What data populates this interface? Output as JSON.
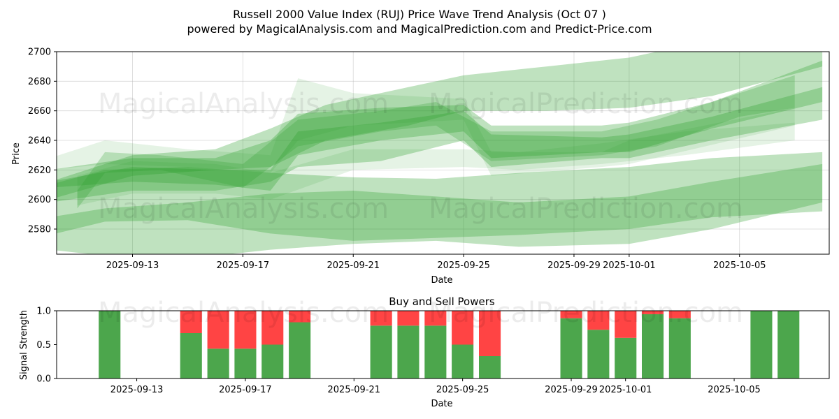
{
  "chart_data": [
    {
      "type": "area",
      "title_line1": "Russell 2000 Value Index (RUJ) Price Wave Trend Analysis (Oct 07 )",
      "title_line2": "powered by MagicalAnalysis.com and MagicalPrediction.com and Predict-Price.com",
      "xlabel": "Date",
      "ylabel": "Price",
      "xlim": [
        "2025-09-10",
        "2025-10-08"
      ],
      "ylim": [
        2563,
        2700
      ],
      "y_ticks": [
        2580,
        2600,
        2620,
        2640,
        2660,
        2680,
        2700
      ],
      "x_ticks": [
        "2025-09-13",
        "2025-09-17",
        "2025-09-21",
        "2025-09-25",
        "2025-09-29",
        "2025-10-01",
        "2025-10-05"
      ],
      "band_color": "#2ca02c",
      "watermarks": [
        "MagicalAnalysis.com",
        "MagicalPrediction.com"
      ],
      "bands": [
        {
          "dates": [
            "2025-09-10",
            "2025-09-12",
            "2025-09-15",
            "2025-09-18",
            "2025-09-21",
            "2025-09-24",
            "2025-09-27",
            "2025-10-01",
            "2025-10-04",
            "2025-10-08"
          ],
          "lower": [
            2576,
            2585,
            2586,
            2577,
            2572,
            2574,
            2576,
            2580,
            2588,
            2592
          ],
          "upper": [
            2588,
            2594,
            2598,
            2604,
            2606,
            2602,
            2598,
            2602,
            2612,
            2624
          ],
          "alpha": 0.3
        },
        {
          "dates": [
            "2025-09-10",
            "2025-09-12",
            "2025-09-15",
            "2025-09-18",
            "2025-09-21",
            "2025-09-24",
            "2025-09-27",
            "2025-10-01",
            "2025-10-04",
            "2025-10-08"
          ],
          "lower": [
            2566,
            2562,
            2560,
            2566,
            2570,
            2572,
            2568,
            2570,
            2580,
            2598
          ],
          "upper": [
            2610,
            2620,
            2622,
            2618,
            2615,
            2614,
            2618,
            2622,
            2628,
            2632
          ],
          "alpha": 0.3
        },
        {
          "dates": [
            "2025-09-10",
            "2025-09-13",
            "2025-09-16",
            "2025-09-18",
            "2025-09-19",
            "2025-09-22",
            "2025-09-25",
            "2025-09-26",
            "2025-09-30",
            "2025-10-01",
            "2025-10-04",
            "2025-10-08"
          ],
          "lower": [
            2608,
            2612,
            2610,
            2606,
            2630,
            2640,
            2646,
            2628,
            2632,
            2632,
            2648,
            2666
          ],
          "upper": [
            2620,
            2628,
            2628,
            2640,
            2658,
            2662,
            2664,
            2650,
            2650,
            2652,
            2666,
            2694
          ],
          "alpha": 0.3
        },
        {
          "dates": [
            "2025-09-10",
            "2025-09-13",
            "2025-09-16",
            "2025-09-18",
            "2025-09-19",
            "2025-09-22",
            "2025-09-25",
            "2025-09-26",
            "2025-09-30",
            "2025-10-01",
            "2025-10-04",
            "2025-10-08"
          ],
          "lower": [
            2598,
            2606,
            2606,
            2612,
            2622,
            2626,
            2640,
            2622,
            2628,
            2628,
            2640,
            2654
          ],
          "upper": [
            2612,
            2622,
            2620,
            2620,
            2646,
            2652,
            2660,
            2644,
            2642,
            2644,
            2656,
            2676
          ],
          "alpha": 0.3
        },
        {
          "dates": [
            "2025-09-10",
            "2025-09-13",
            "2025-09-16",
            "2025-09-18",
            "2025-09-20",
            "2025-09-23",
            "2025-09-25",
            "2025-09-28",
            "2025-10-01",
            "2025-10-04",
            "2025-10-08"
          ],
          "lower": [
            2600,
            2616,
            2620,
            2622,
            2640,
            2650,
            2660,
            2660,
            2662,
            2670,
            2690
          ],
          "upper": [
            2612,
            2630,
            2634,
            2648,
            2664,
            2676,
            2684,
            2690,
            2696,
            2708,
            2716
          ],
          "alpha": 0.3
        },
        {
          "dates": [
            "2025-09-11",
            "2025-09-12",
            "2025-09-14",
            "2025-09-17",
            "2025-09-19",
            "2025-09-22",
            "2025-09-24",
            "2025-09-26",
            "2025-09-30",
            "2025-10-02",
            "2025-10-05",
            "2025-10-07"
          ],
          "lower": [
            2594,
            2618,
            2620,
            2608,
            2636,
            2646,
            2650,
            2626,
            2630,
            2636,
            2656,
            2662
          ],
          "upper": [
            2606,
            2632,
            2630,
            2624,
            2654,
            2660,
            2666,
            2646,
            2646,
            2654,
            2672,
            2684
          ],
          "alpha": 0.25
        },
        {
          "dates": [
            "2025-09-10",
            "2025-09-12",
            "2025-09-15",
            "2025-09-18",
            "2025-09-19",
            "2025-09-21",
            "2025-09-25",
            "2025-09-26",
            "2025-09-30",
            "2025-10-01",
            "2025-10-07"
          ],
          "lower": [
            2620,
            2624,
            2622,
            2618,
            2640,
            2650,
            2654,
            2616,
            2622,
            2624,
            2650
          ],
          "upper": [
            2628,
            2640,
            2634,
            2630,
            2682,
            2672,
            2668,
            2632,
            2632,
            2640,
            2662
          ],
          "alpha": 0.12
        },
        {
          "dates": [
            "2025-09-11",
            "2025-09-13",
            "2025-09-16",
            "2025-09-18",
            "2025-09-21",
            "2025-09-25",
            "2025-09-27",
            "2025-09-30",
            "2025-10-03",
            "2025-10-07"
          ],
          "lower": [
            2596,
            2604,
            2604,
            2600,
            2620,
            2622,
            2620,
            2624,
            2630,
            2640
          ],
          "upper": [
            2616,
            2626,
            2624,
            2618,
            2634,
            2634,
            2632,
            2638,
            2646,
            2652
          ],
          "alpha": 0.12
        }
      ]
    },
    {
      "type": "bar",
      "title": "Buy and Sell Powers",
      "xlabel": "Date",
      "ylabel": "Signal Strength",
      "ylim": [
        0,
        1
      ],
      "y_ticks": [
        "0.0",
        "0.5",
        "1.0"
      ],
      "x_ticks": [
        "2025-09-13",
        "2025-09-17",
        "2025-09-21",
        "2025-09-25",
        "2025-09-29",
        "2025-10-01",
        "2025-10-05"
      ],
      "buy_color": "#4ca64c",
      "sell_color": "#ff4444",
      "bars": [
        {
          "date": "2025-09-12",
          "buy": 1.0
        },
        {
          "date": "2025-09-15",
          "buy": 0.67
        },
        {
          "date": "2025-09-16",
          "buy": 0.44
        },
        {
          "date": "2025-09-17",
          "buy": 0.44
        },
        {
          "date": "2025-09-18",
          "buy": 0.5
        },
        {
          "date": "2025-09-19",
          "buy": 0.83
        },
        {
          "date": "2025-09-22",
          "buy": 0.78
        },
        {
          "date": "2025-09-23",
          "buy": 0.78
        },
        {
          "date": "2025-09-24",
          "buy": 0.78
        },
        {
          "date": "2025-09-25",
          "buy": 0.5
        },
        {
          "date": "2025-09-26",
          "buy": 0.33
        },
        {
          "date": "2025-09-29",
          "buy": 0.89
        },
        {
          "date": "2025-09-30",
          "buy": 0.72
        },
        {
          "date": "2025-10-01",
          "buy": 0.6
        },
        {
          "date": "2025-10-02",
          "buy": 0.95
        },
        {
          "date": "2025-10-03",
          "buy": 0.89
        },
        {
          "date": "2025-10-06",
          "buy": 1.0
        },
        {
          "date": "2025-10-07",
          "buy": 1.0
        }
      ]
    }
  ]
}
